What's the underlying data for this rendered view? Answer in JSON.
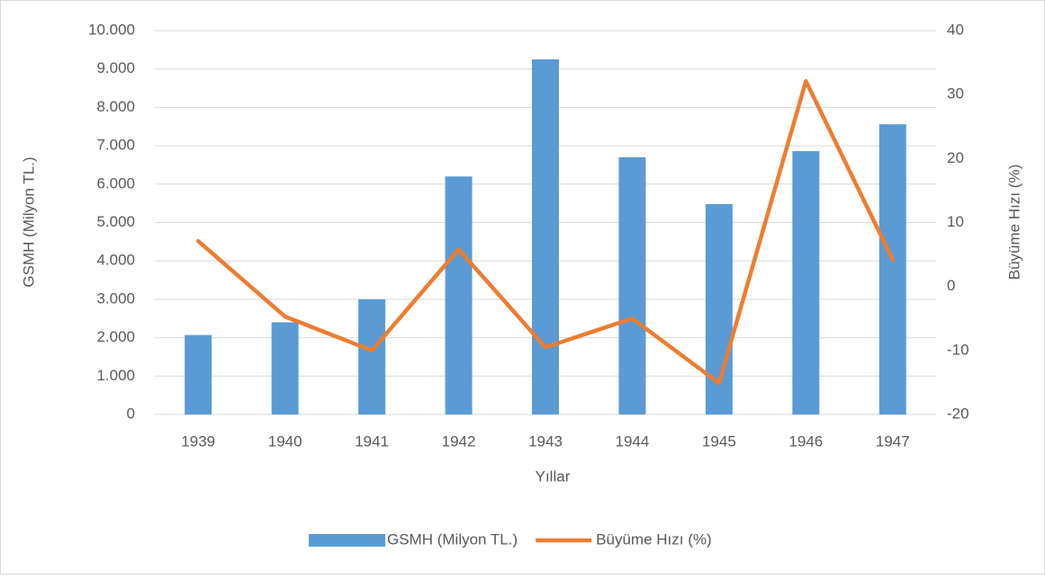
{
  "chart_data": {
    "type": "bar_line",
    "categories": [
      "1939",
      "1940",
      "1941",
      "1942",
      "1943",
      "1944",
      "1945",
      "1946",
      "1947"
    ],
    "series": [
      {
        "name": "GSMH (Milyon TL.)",
        "type": "bar",
        "color": "#5b9bd5",
        "values": [
          2070,
          2400,
          3000,
          6200,
          9250,
          6700,
          5480,
          6860,
          7560
        ]
      },
      {
        "name": "Büyüme Hızı (%)",
        "type": "line",
        "axis": "y2",
        "color": "#ed7d31",
        "values": [
          7.1,
          -4.7,
          -10,
          5.8,
          -9.5,
          -5,
          -15.1,
          32.1,
          4.2
        ]
      }
    ],
    "xlabel": "Yıllar",
    "ylabel": "GSMH (Milyon TL.)",
    "y2label": "Büyüme Hızı (%)",
    "ylim": [
      0,
      10000
    ],
    "yticks": [
      0,
      {
        "value": 1000,
        "label": "1.000"
      },
      {
        "value": 2000,
        "label": "2.000"
      },
      {
        "value": 3000,
        "label": "3.000"
      },
      {
        "value": 4000,
        "label": "4.000"
      },
      {
        "value": 5000,
        "label": "5.000"
      },
      {
        "value": 6000,
        "label": "6.000"
      },
      {
        "value": 7000,
        "label": "7.000"
      },
      {
        "value": 8000,
        "label": "8.000"
      },
      {
        "value": 9000,
        "label": "9.000"
      },
      {
        "value": 10000,
        "label": "10.000"
      }
    ],
    "y2lim": [
      -20,
      40
    ],
    "y2ticks": [
      -20,
      -10,
      0,
      10,
      20,
      30,
      40
    ],
    "grid": true,
    "legend": "bottom"
  }
}
